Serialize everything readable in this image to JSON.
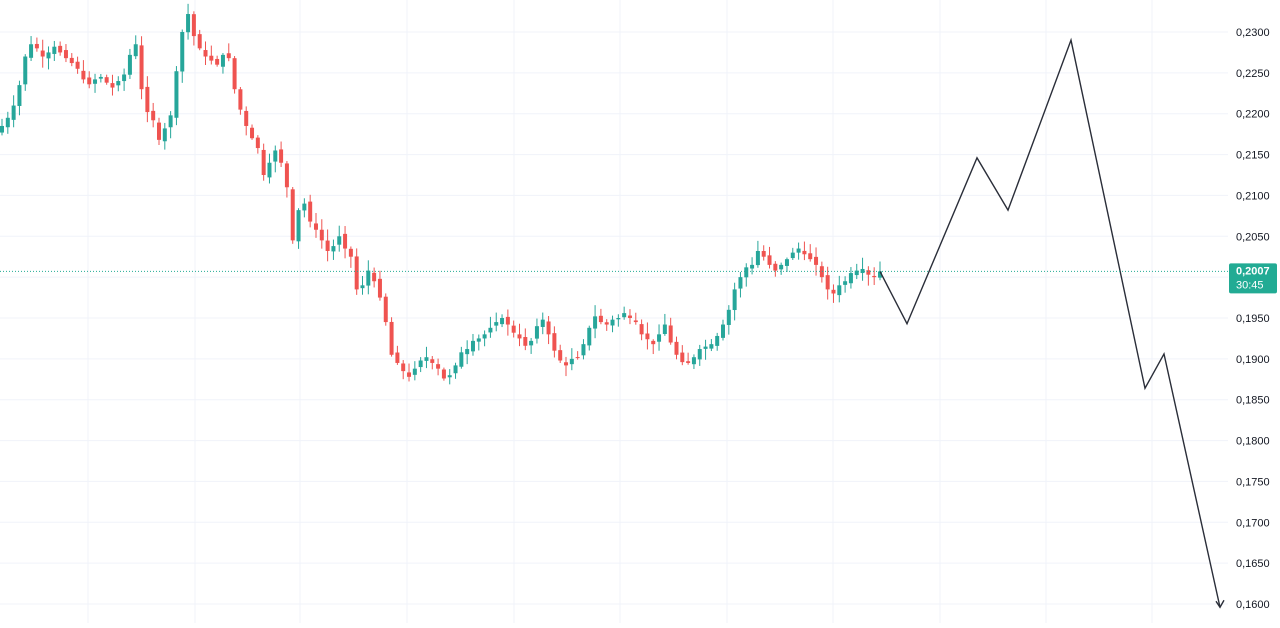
{
  "chart_data": {
    "type": "candlestick",
    "title": "",
    "xlabel": "",
    "ylabel": "",
    "ylim": [
      0.159,
      0.233
    ],
    "grid": true,
    "y_ticks": [
      "0,2300",
      "0,2250",
      "0,2200",
      "0,2150",
      "0,2100",
      "0,2050",
      "0,1950",
      "0,1900",
      "0,1850",
      "0,1800",
      "0,1750",
      "0,1700",
      "0,1650",
      "0,1600"
    ],
    "y_tick_values": [
      0.23,
      0.225,
      0.22,
      0.215,
      0.21,
      0.205,
      0.195,
      0.19,
      0.185,
      0.18,
      0.175,
      0.17,
      0.165,
      0.16
    ],
    "current_price": {
      "value": 0.2007,
      "label": "0,2007",
      "countdown": "30:45"
    },
    "close_path": [
      0.2185,
      0.2195,
      0.221,
      0.2235,
      0.227,
      0.2285,
      0.228,
      0.227,
      0.2275,
      0.2282,
      0.2275,
      0.2268,
      0.2262,
      0.2255,
      0.2242,
      0.2236,
      0.2242,
      0.2245,
      0.2238,
      0.2232,
      0.224,
      0.2248,
      0.2272,
      0.2285,
      0.223,
      0.2202,
      0.2192,
      0.2168,
      0.2182,
      0.2198,
      0.2252,
      0.23,
      0.2322,
      0.2295,
      0.228,
      0.227,
      0.2265,
      0.226,
      0.2272,
      0.2268,
      0.223,
      0.2205,
      0.2185,
      0.217,
      0.2158,
      0.2125,
      0.214,
      0.2155,
      0.214,
      0.211,
      0.2045,
      0.2082,
      0.209,
      0.2068,
      0.2058,
      0.2045,
      0.2032,
      0.2038,
      0.205,
      0.2035,
      0.2025,
      0.1985,
      0.199,
      0.2008,
      0.1995,
      0.1975,
      0.1945,
      0.1905,
      0.1895,
      0.1885,
      0.1878,
      0.1888,
      0.1898,
      0.1902,
      0.1895,
      0.1888,
      0.1876,
      0.188,
      0.1892,
      0.1908,
      0.1912,
      0.1922,
      0.1925,
      0.193,
      0.1938,
      0.1945,
      0.195,
      0.1942,
      0.1932,
      0.1925,
      0.1916,
      0.1922,
      0.194,
      0.1948,
      0.193,
      0.191,
      0.1898,
      0.1892,
      0.19,
      0.1902,
      0.1918,
      0.1938,
      0.1952,
      0.1945,
      0.1942,
      0.1948,
      0.195,
      0.1956,
      0.195,
      0.1945,
      0.193,
      0.1924,
      0.1918,
      0.193,
      0.1942,
      0.192,
      0.1905,
      0.1896,
      0.1895,
      0.1902,
      0.1912,
      0.1915,
      0.1918,
      0.1928,
      0.1942,
      0.196,
      0.1985,
      0.2,
      0.2012,
      0.2015,
      0.2032,
      0.2025,
      0.2015,
      0.2008,
      0.2015,
      0.2022,
      0.203,
      0.2035,
      0.2028,
      0.2022,
      0.2015,
      0.2,
      0.1985,
      0.198,
      0.199,
      0.1995,
      0.2005,
      0.2008,
      0.201,
      0.2003,
      0.2,
      0.2007
    ],
    "projection": [
      {
        "step": 0,
        "y": 0.2007
      },
      {
        "step": 1,
        "y": 0.1943
      },
      {
        "step": 2,
        "y": 0.2146
      },
      {
        "step": 3,
        "y": 0.2082
      },
      {
        "step": 4,
        "y": 0.229
      },
      {
        "step": 5,
        "y": 0.1864
      },
      {
        "step": 6,
        "y": 0.1906
      },
      {
        "step": 7,
        "y": 0.1596
      }
    ],
    "colors": {
      "up": "#26a69a",
      "down": "#ef5350",
      "grid": "#f0f3fa",
      "projection": "#2a2e39",
      "price_line": "#22ab94",
      "price_tag": "#22ab94"
    }
  }
}
